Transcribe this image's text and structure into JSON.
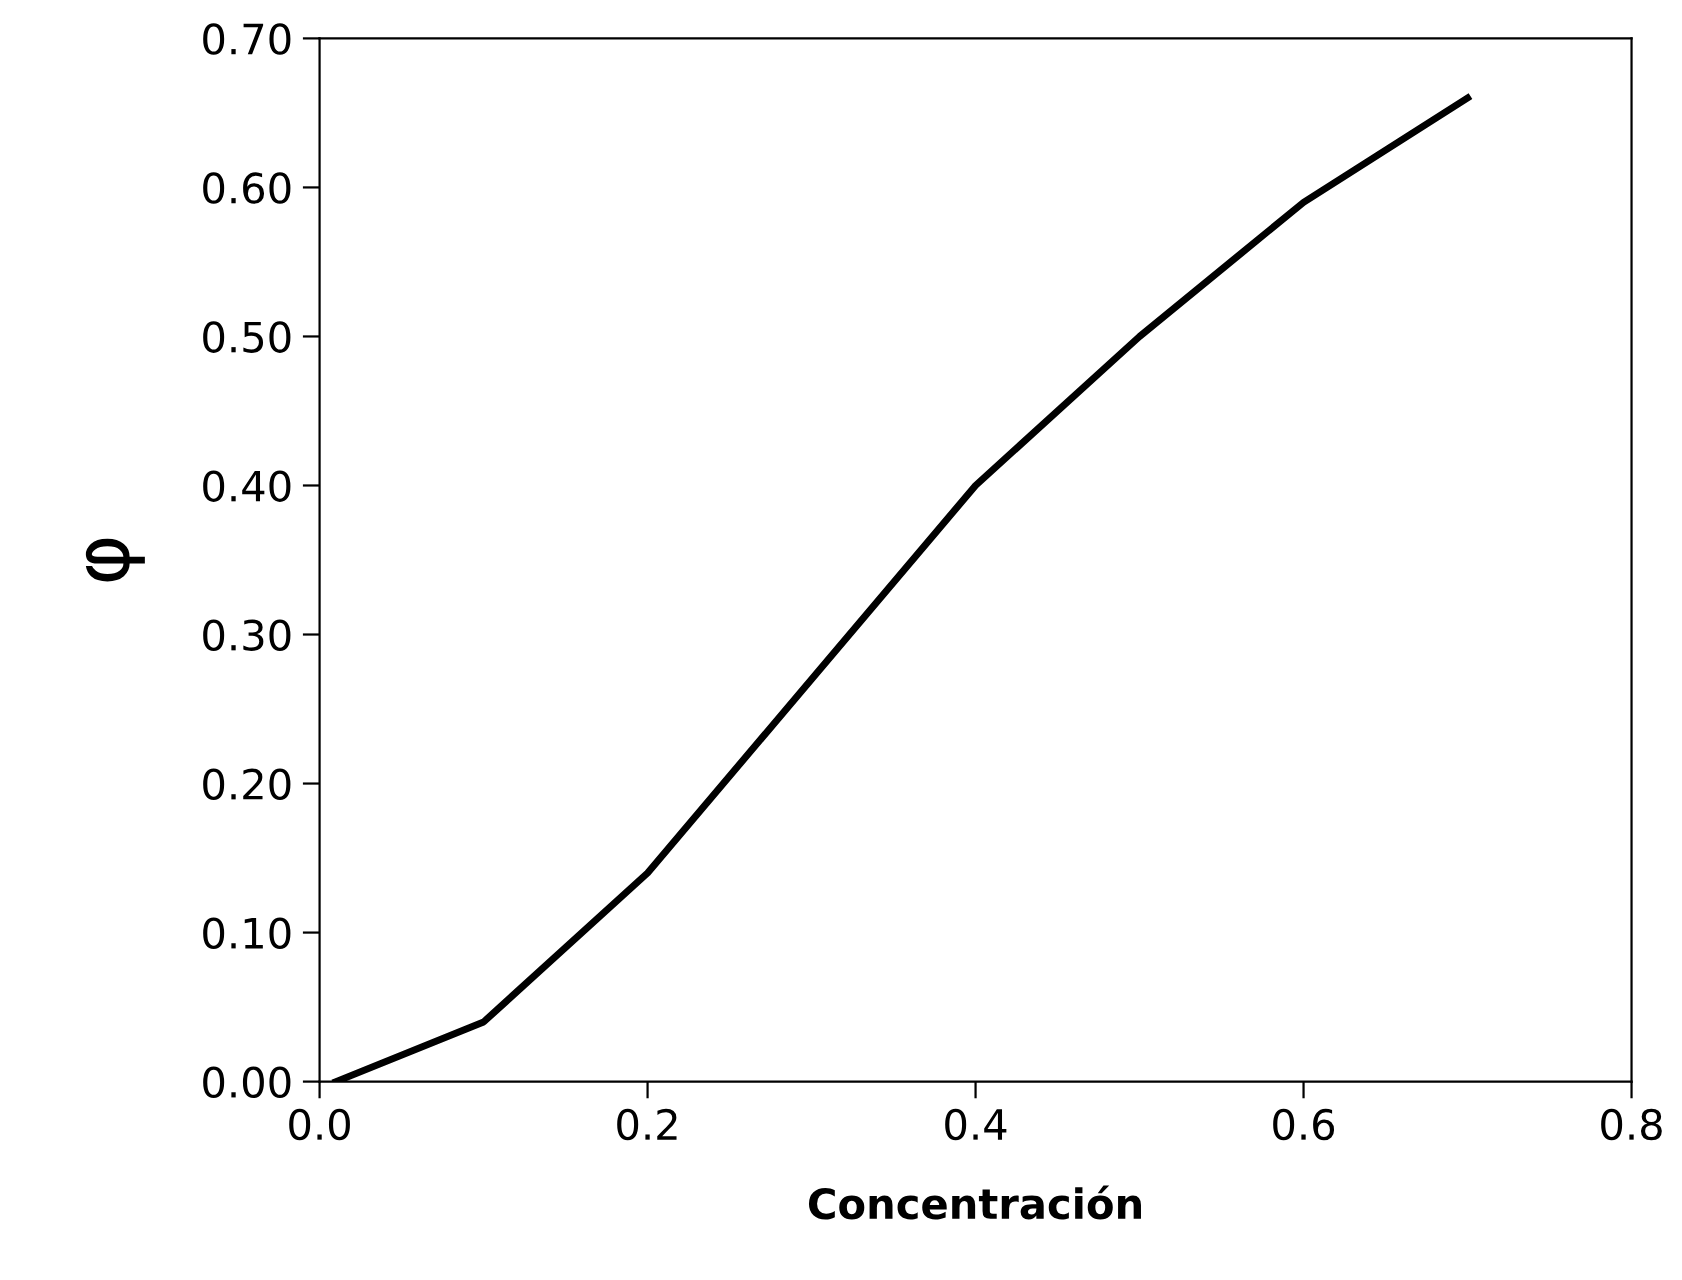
{
  "chart_data": {
    "type": "line",
    "xlabel": "Concentración",
    "ylabel": "φ",
    "series": [
      {
        "color": "#000000",
        "x": [
          0.01,
          0.1,
          0.2,
          0.3,
          0.4,
          0.5,
          0.6,
          0.7
        ],
        "values": [
          0.0,
          0.04,
          0.14,
          0.27,
          0.4,
          0.5,
          0.59,
          0.66
        ]
      }
    ],
    "xlim": [
      0,
      0.8
    ],
    "ylim": [
      0,
      0.7
    ],
    "xticks": [
      {
        "value": 0,
        "label": "0.0"
      },
      {
        "value": 0.2,
        "label": "0.2"
      },
      {
        "value": 0.4,
        "label": "0.4"
      },
      {
        "value": 0.6,
        "label": "0.6"
      },
      {
        "value": 0.8,
        "label": "0.8"
      }
    ],
    "yticks": [
      {
        "value": 0,
        "label": "0.00"
      },
      {
        "value": 0.1,
        "label": "0.10"
      },
      {
        "value": 0.2,
        "label": "0.20"
      },
      {
        "value": 0.3,
        "label": "0.30"
      },
      {
        "value": 0.4,
        "label": "0.40"
      },
      {
        "value": 0.5,
        "label": "0.50"
      },
      {
        "value": 0.6,
        "label": "0.60"
      },
      {
        "value": 0.7,
        "label": "0.70"
      }
    ],
    "grid": false,
    "marker": "none",
    "line_style": "solid"
  }
}
